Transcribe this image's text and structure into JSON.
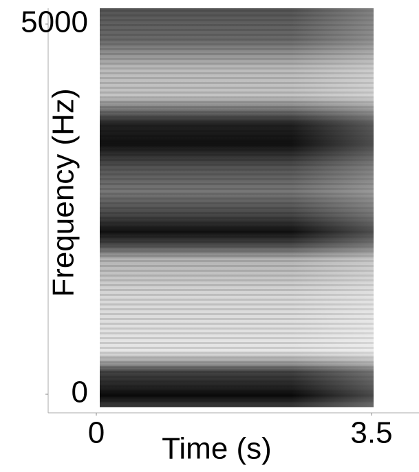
{
  "chart_data": {
    "type": "spectrogram",
    "xlabel": "Time (s)",
    "ylabel": "Frequency (Hz)",
    "xlim": [
      0,
      3.5
    ],
    "ylim": [
      0,
      5000
    ],
    "xticks": [
      0,
      3.5
    ],
    "yticks": [
      0,
      5000
    ]
  }
}
